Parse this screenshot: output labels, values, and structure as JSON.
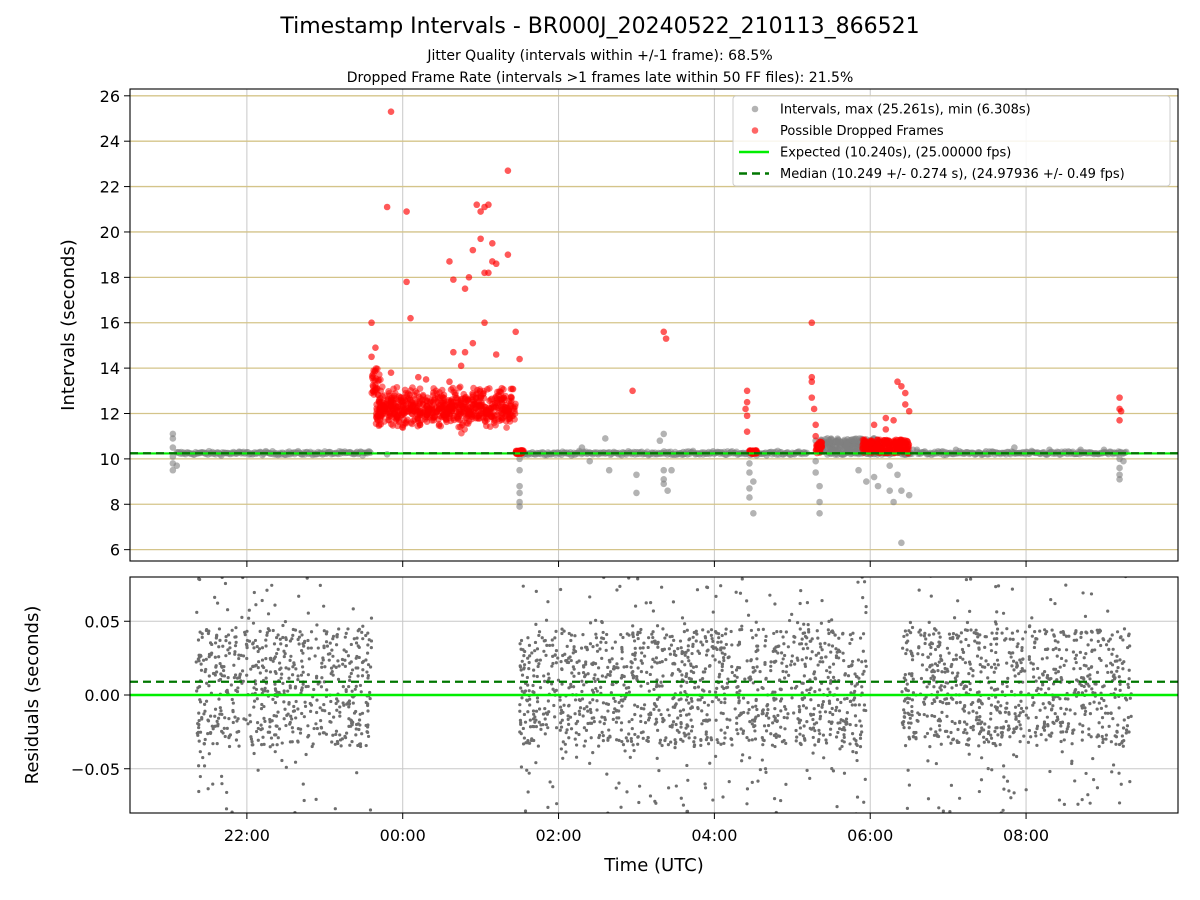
{
  "chart_data": [
    {
      "type": "scatter",
      "panel": "intervals",
      "title": "Timestamp Intervals - BR000J_20240522_210113_866521",
      "subtitle_1": "Jitter Quality (intervals within +/-1 frame): 68.5%",
      "subtitle_2": "Dropped Frame Rate (intervals >1 frames late within 50 FF files): 21.5%",
      "ylabel": "Intervals (seconds)",
      "xlabel": "",
      "ylim": [
        5.5,
        26.3
      ],
      "yticks": [
        "6",
        "8",
        "10",
        "12",
        "14",
        "16",
        "18",
        "20",
        "22",
        "24",
        "26"
      ],
      "yticks_values": [
        6,
        8,
        10,
        12,
        14,
        16,
        18,
        20,
        22,
        24,
        26
      ],
      "xlim_hours": [
        20.5,
        33.95
      ],
      "grid": true,
      "legend": {
        "position": "top-right",
        "entries": [
          {
            "label": "Intervals, max (25.261s), min (6.308s)",
            "color": "#808080",
            "marker": "circle"
          },
          {
            "label": "Possible Dropped Frames",
            "color": "#ff0000",
            "marker": "circle"
          },
          {
            "label": "Expected (10.240s), (25.00000 fps)",
            "color": "#00ee00",
            "marker": "line"
          },
          {
            "label": "Median (10.249 +/- 0.274 s), (24.97936 +/- 0.49 fps)",
            "color": "#007700",
            "marker": "dashed-line"
          }
        ]
      },
      "expected_line": 10.24,
      "median_line": 10.249,
      "series": [
        {
          "name": "Intervals, max (25.261s), min (6.308s)",
          "color": "#808080",
          "note": "dense band near 10.25 s across 21:05-23:35, 01:35-05:55, 06:30-09:20",
          "points": [
            {
              "x": 21.05,
              "y": 11.1
            },
            {
              "x": 21.05,
              "y": 10.9
            },
            {
              "x": 21.05,
              "y": 10.5
            },
            {
              "x": 21.05,
              "y": 10.1
            },
            {
              "x": 21.05,
              "y": 9.8
            },
            {
              "x": 21.05,
              "y": 9.5
            },
            {
              "x": 21.1,
              "y": 9.7
            },
            {
              "x": 23.8,
              "y": 10.2
            },
            {
              "x": 25.5,
              "y": 10.0
            },
            {
              "x": 25.5,
              "y": 9.5
            },
            {
              "x": 25.5,
              "y": 8.8
            },
            {
              "x": 25.5,
              "y": 8.5
            },
            {
              "x": 25.5,
              "y": 8.1
            },
            {
              "x": 25.5,
              "y": 7.9
            },
            {
              "x": 26.3,
              "y": 10.5
            },
            {
              "x": 26.4,
              "y": 9.9
            },
            {
              "x": 26.6,
              "y": 10.9
            },
            {
              "x": 26.65,
              "y": 9.5
            },
            {
              "x": 27.0,
              "y": 9.3
            },
            {
              "x": 27.0,
              "y": 8.5
            },
            {
              "x": 27.3,
              "y": 10.8
            },
            {
              "x": 27.35,
              "y": 11.1
            },
            {
              "x": 27.35,
              "y": 9.5
            },
            {
              "x": 27.35,
              "y": 9.1
            },
            {
              "x": 27.35,
              "y": 8.9
            },
            {
              "x": 27.4,
              "y": 8.6
            },
            {
              "x": 27.45,
              "y": 9.5
            },
            {
              "x": 27.6,
              "y": 10.3
            },
            {
              "x": 28.45,
              "y": 9.8
            },
            {
              "x": 28.45,
              "y": 9.4
            },
            {
              "x": 28.45,
              "y": 8.7
            },
            {
              "x": 28.45,
              "y": 8.3
            },
            {
              "x": 28.5,
              "y": 7.6
            },
            {
              "x": 28.5,
              "y": 9.0
            },
            {
              "x": 29.3,
              "y": 10.8
            },
            {
              "x": 29.3,
              "y": 9.9
            },
            {
              "x": 29.3,
              "y": 9.4
            },
            {
              "x": 29.35,
              "y": 8.8
            },
            {
              "x": 29.35,
              "y": 8.1
            },
            {
              "x": 29.35,
              "y": 7.6
            },
            {
              "x": 29.4,
              "y": 10.6
            },
            {
              "x": 29.45,
              "y": 10.9
            },
            {
              "x": 29.6,
              "y": 10.7
            },
            {
              "x": 29.7,
              "y": 10.6
            },
            {
              "x": 29.8,
              "y": 10.8
            },
            {
              "x": 29.85,
              "y": 9.5
            },
            {
              "x": 29.95,
              "y": 9.0
            },
            {
              "x": 30.05,
              "y": 10.9
            },
            {
              "x": 30.05,
              "y": 9.2
            },
            {
              "x": 30.1,
              "y": 8.8
            },
            {
              "x": 30.2,
              "y": 10.7
            },
            {
              "x": 30.25,
              "y": 9.7
            },
            {
              "x": 30.25,
              "y": 8.6
            },
            {
              "x": 30.3,
              "y": 8.1
            },
            {
              "x": 30.35,
              "y": 9.3
            },
            {
              "x": 30.4,
              "y": 8.6
            },
            {
              "x": 30.4,
              "y": 6.3
            },
            {
              "x": 30.5,
              "y": 8.4
            },
            {
              "x": 30.55,
              "y": 10.4
            },
            {
              "x": 30.6,
              "y": 10.4
            },
            {
              "x": 31.1,
              "y": 10.4
            },
            {
              "x": 31.85,
              "y": 10.5
            },
            {
              "x": 32.3,
              "y": 10.4
            },
            {
              "x": 32.7,
              "y": 10.4
            },
            {
              "x": 33.0,
              "y": 10.4
            },
            {
              "x": 33.2,
              "y": 10.0
            },
            {
              "x": 33.2,
              "y": 9.6
            },
            {
              "x": 33.2,
              "y": 9.3
            },
            {
              "x": 33.2,
              "y": 9.1
            },
            {
              "x": 33.25,
              "y": 9.9
            }
          ]
        },
        {
          "name": "Possible Dropped Frames",
          "color": "#ff0000",
          "note": "dense cluster 11.4-13.2 s between 23:35 and 01:30",
          "points": [
            {
              "x": 23.85,
              "y": 25.3
            },
            {
              "x": 23.8,
              "y": 21.1
            },
            {
              "x": 24.05,
              "y": 20.9
            },
            {
              "x": 24.05,
              "y": 17.8
            },
            {
              "x": 24.1,
              "y": 16.2
            },
            {
              "x": 23.6,
              "y": 16.0
            },
            {
              "x": 24.2,
              "y": 13.6
            },
            {
              "x": 23.65,
              "y": 14.9
            },
            {
              "x": 23.6,
              "y": 14.5
            },
            {
              "x": 23.85,
              "y": 13.8
            },
            {
              "x": 24.3,
              "y": 13.5
            },
            {
              "x": 24.6,
              "y": 13.4
            },
            {
              "x": 24.6,
              "y": 18.7
            },
            {
              "x": 24.65,
              "y": 17.9
            },
            {
              "x": 24.65,
              "y": 14.7
            },
            {
              "x": 24.75,
              "y": 14.1
            },
            {
              "x": 24.85,
              "y": 18.0
            },
            {
              "x": 24.8,
              "y": 17.5
            },
            {
              "x": 24.8,
              "y": 14.7
            },
            {
              "x": 24.9,
              "y": 19.2
            },
            {
              "x": 24.9,
              "y": 15.1
            },
            {
              "x": 24.95,
              "y": 21.2
            },
            {
              "x": 25.0,
              "y": 20.9
            },
            {
              "x": 25.05,
              "y": 21.1
            },
            {
              "x": 25.05,
              "y": 18.2
            },
            {
              "x": 25.1,
              "y": 18.2
            },
            {
              "x": 25.1,
              "y": 21.2
            },
            {
              "x": 25.0,
              "y": 19.7
            },
            {
              "x": 25.05,
              "y": 16.0
            },
            {
              "x": 25.15,
              "y": 19.5
            },
            {
              "x": 25.15,
              "y": 18.7
            },
            {
              "x": 25.2,
              "y": 18.6
            },
            {
              "x": 25.2,
              "y": 14.6
            },
            {
              "x": 25.35,
              "y": 22.7
            },
            {
              "x": 25.35,
              "y": 19.0
            },
            {
              "x": 25.45,
              "y": 15.6
            },
            {
              "x": 25.5,
              "y": 14.4
            },
            {
              "x": 26.95,
              "y": 13.0
            },
            {
              "x": 27.35,
              "y": 15.6
            },
            {
              "x": 27.38,
              "y": 15.3
            },
            {
              "x": 28.42,
              "y": 13.0
            },
            {
              "x": 28.42,
              "y": 12.5
            },
            {
              "x": 28.4,
              "y": 12.2
            },
            {
              "x": 28.42,
              "y": 11.9
            },
            {
              "x": 28.42,
              "y": 11.2
            },
            {
              "x": 29.25,
              "y": 16.0
            },
            {
              "x": 29.25,
              "y": 13.6
            },
            {
              "x": 29.25,
              "y": 13.4
            },
            {
              "x": 29.25,
              "y": 12.7
            },
            {
              "x": 29.28,
              "y": 12.2
            },
            {
              "x": 29.3,
              "y": 11.5
            },
            {
              "x": 29.3,
              "y": 11.0
            },
            {
              "x": 30.05,
              "y": 11.5
            },
            {
              "x": 30.2,
              "y": 11.8
            },
            {
              "x": 30.3,
              "y": 11.7
            },
            {
              "x": 30.35,
              "y": 13.4
            },
            {
              "x": 30.4,
              "y": 13.2
            },
            {
              "x": 30.45,
              "y": 12.9
            },
            {
              "x": 30.45,
              "y": 12.4
            },
            {
              "x": 30.5,
              "y": 12.1
            },
            {
              "x": 30.2,
              "y": 11.3
            },
            {
              "x": 33.2,
              "y": 12.7
            },
            {
              "x": 33.2,
              "y": 12.2
            },
            {
              "x": 33.22,
              "y": 12.1
            },
            {
              "x": 33.2,
              "y": 11.7
            }
          ]
        }
      ]
    },
    {
      "type": "scatter",
      "panel": "residuals",
      "ylabel": "Residuals (seconds)",
      "xlabel": "Time (UTC)",
      "ylim": [
        -0.08,
        0.08
      ],
      "yticks": [
        "−0.05",
        "0.00",
        "0.05"
      ],
      "yticks_values": [
        -0.05,
        0.0,
        0.05
      ],
      "xticks": [
        "22:00",
        "00:00",
        "02:00",
        "04:00",
        "06:00",
        "08:00"
      ],
      "xticks_values": [
        22,
        24,
        26,
        28,
        30,
        32
      ],
      "xlim_hours": [
        20.5,
        33.95
      ],
      "grid": true,
      "expected_line": 0.0,
      "median_line": 0.009,
      "series": [
        {
          "name": "Residuals",
          "color": "#6e6e6e",
          "note": "dense scatter roughly uniform in -0.04..0.05 over 21:20-23:35, 01:35-05:55, 06:20-09:20",
          "segments": [
            {
              "from": 21.35,
              "to": 23.6
            },
            {
              "from": 25.5,
              "to": 29.95
            },
            {
              "from": 30.4,
              "to": 33.35
            }
          ]
        }
      ]
    }
  ]
}
